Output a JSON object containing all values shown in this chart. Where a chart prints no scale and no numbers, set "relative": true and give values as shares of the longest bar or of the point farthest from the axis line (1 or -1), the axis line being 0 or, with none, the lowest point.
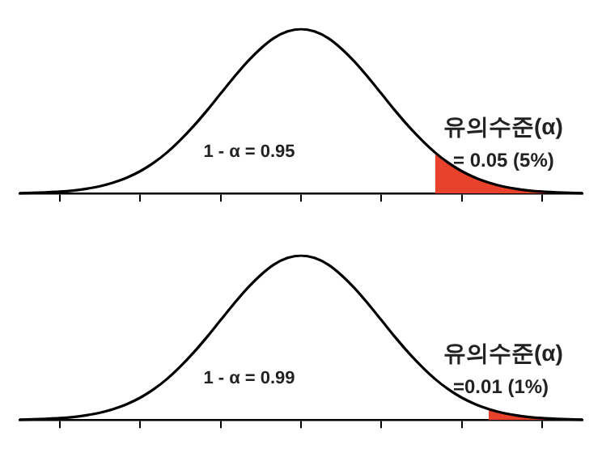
{
  "chart_data": [
    {
      "type": "line",
      "relative": true,
      "marker": "none",
      "legend": false,
      "categories": [
        null,
        null,
        null,
        null,
        null,
        null,
        null,
        null,
        null,
        null,
        null,
        null,
        null,
        null,
        null,
        null,
        null,
        null,
        null,
        null,
        null,
        null,
        null,
        null,
        null,
        null,
        null,
        null,
        null,
        null,
        null,
        null,
        null,
        null,
        null,
        null,
        null,
        null,
        null,
        null,
        null,
        null,
        null
      ],
      "annotations": [
        "1 - α = 0.95",
        "유의수준(α)",
        "= 0.05 (5%)"
      ],
      "series": [
        {
          "color": "#000000",
          "values": [
            0.002,
            0.004,
            0.007,
            0.011,
            0.018,
            0.029,
            0.044,
            0.066,
            0.096,
            0.135,
            0.186,
            0.249,
            0.325,
            0.411,
            0.506,
            0.607,
            0.707,
            0.801,
            0.882,
            0.946,
            0.986,
            1,
            0.986,
            0.946,
            0.882,
            0.801,
            0.707,
            0.607,
            0.506,
            0.411,
            0.325,
            0.249,
            0.186,
            0.135,
            0.096,
            0.066,
            0.044,
            0.029,
            0.018,
            0.011,
            0.007,
            0.004,
            0.002
          ]
        },
        {
          "type": "area",
          "color": "#e8412c",
          "values": [
            null,
            null,
            null,
            null,
            null,
            null,
            null,
            null,
            null,
            null,
            null,
            null,
            null,
            null,
            null,
            null,
            null,
            null,
            null,
            null,
            null,
            null,
            null,
            null,
            null,
            null,
            null,
            null,
            null,
            null,
            null,
            0.249,
            0.186,
            0.135,
            0.096,
            0.066,
            0.044,
            0.029,
            0.018,
            0.011,
            0.007,
            0.004,
            0.002
          ]
        }
      ]
    },
    {
      "type": "line",
      "relative": true,
      "marker": "none",
      "legend": false,
      "categories": [
        null,
        null,
        null,
        null,
        null,
        null,
        null,
        null,
        null,
        null,
        null,
        null,
        null,
        null,
        null,
        null,
        null,
        null,
        null,
        null,
        null,
        null,
        null,
        null,
        null,
        null,
        null,
        null,
        null,
        null,
        null,
        null,
        null,
        null,
        null,
        null,
        null,
        null,
        null,
        null,
        null,
        null,
        null
      ],
      "annotations": [
        "1 - α = 0.99",
        "유의수준(α)",
        "=0.01 (1%)"
      ],
      "series": [
        {
          "color": "#000000",
          "values": [
            0.002,
            0.004,
            0.007,
            0.011,
            0.018,
            0.029,
            0.044,
            0.066,
            0.096,
            0.135,
            0.186,
            0.249,
            0.325,
            0.411,
            0.506,
            0.607,
            0.707,
            0.801,
            0.882,
            0.946,
            0.986,
            1,
            0.986,
            0.946,
            0.882,
            0.801,
            0.707,
            0.607,
            0.506,
            0.411,
            0.325,
            0.249,
            0.186,
            0.135,
            0.096,
            0.066,
            0.044,
            0.029,
            0.018,
            0.011,
            0.007,
            0.004,
            0.002
          ]
        },
        {
          "type": "area",
          "color": "#e8412c",
          "values": [
            null,
            null,
            null,
            null,
            null,
            null,
            null,
            null,
            null,
            null,
            null,
            null,
            null,
            null,
            null,
            null,
            null,
            null,
            null,
            null,
            null,
            null,
            null,
            null,
            null,
            null,
            null,
            null,
            null,
            null,
            null,
            null,
            null,
            null,
            null,
            0.066,
            0.044,
            0.029,
            0.018,
            0.011,
            0.007,
            0.004,
            0.002
          ]
        }
      ]
    }
  ]
}
